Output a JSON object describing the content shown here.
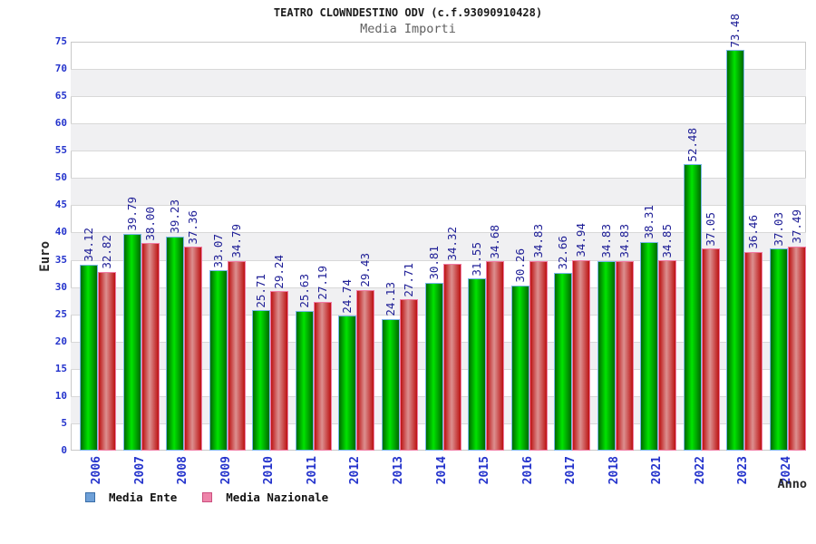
{
  "chart_data": {
    "type": "bar",
    "title": "TEATRO CLOWNDESTINO ODV (c.f.93090910428)",
    "subtitle": "Media Importi",
    "xlabel": "Anno",
    "ylabel": "Euro",
    "ylim": [
      0,
      75
    ],
    "ytick_step": 5,
    "grid": true,
    "legend_position": "bottom-left",
    "categories": [
      "2006",
      "2007",
      "2008",
      "2009",
      "2010",
      "2011",
      "2012",
      "2013",
      "2014",
      "2015",
      "2016",
      "2017",
      "2018",
      "2021",
      "2022",
      "2023",
      "2024"
    ],
    "series": [
      {
        "name": "Media Ente",
        "values": [
          34.12,
          39.79,
          39.23,
          33.07,
          25.71,
          25.63,
          24.74,
          24.13,
          30.81,
          31.55,
          30.26,
          32.66,
          34.83,
          38.31,
          52.48,
          73.48,
          37.03
        ],
        "bar_edge_color": "#006a00",
        "bar_center_color": "#00e400",
        "bar_border_color": "#79b6e8",
        "legend_fill": "#6ea0d8",
        "legend_border": "#3a6ea8"
      },
      {
        "name": "Media Nazionale",
        "values": [
          32.82,
          38.0,
          37.36,
          34.79,
          29.24,
          27.19,
          29.43,
          27.71,
          34.32,
          34.68,
          34.83,
          34.94,
          34.83,
          34.85,
          37.05,
          36.46,
          37.49
        ],
        "bar_edge_color": "#bc1212",
        "bar_center_color": "#dc9090",
        "bar_border_color": "#f07ba4",
        "legend_fill": "#ee85aa",
        "legend_border": "#cc4f7f"
      }
    ],
    "value_label_color": "#1e1e96",
    "tick_label_color": "#2433cc",
    "grid_band_color": "#f0f0f2",
    "gridline_color": "#d8d8d8",
    "plot_border_color": "#c9c9c9"
  }
}
